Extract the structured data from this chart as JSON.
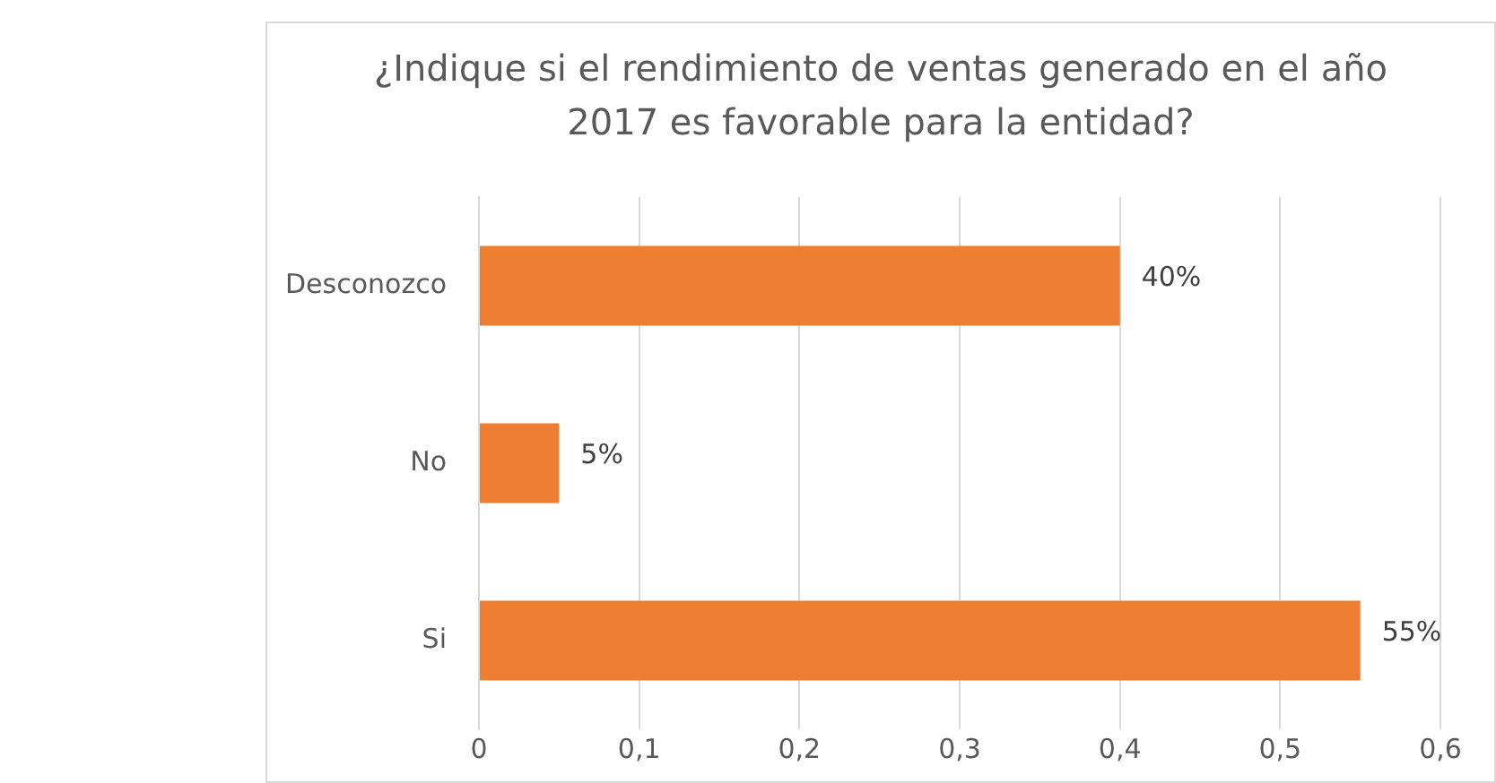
{
  "chart_data": {
    "type": "bar",
    "orientation": "horizontal",
    "title": "¿Indique si el rendimiento de ventas generado en el año 2017 es favorable para la entidad?",
    "categories": [
      "Desconozco",
      "No",
      "Si"
    ],
    "values": [
      0.4,
      0.05,
      0.55
    ],
    "color": "#ed7d31",
    "value_labels": [
      "40%",
      "5%",
      "55%"
    ],
    "xlim": [
      0,
      0.6
    ],
    "xticks": [
      0,
      {
        "value": 0.1,
        "label": "0,1"
      },
      {
        "value": 0.2,
        "label": "0,2"
      },
      {
        "value": 0.3,
        "label": "0,3"
      },
      {
        "value": 0.4,
        "label": "0,4"
      },
      {
        "value": 0.5,
        "label": "0,5"
      },
      {
        "value": 0.6,
        "label": "0,6"
      }
    ],
    "grid": "x",
    "legend": false
  }
}
